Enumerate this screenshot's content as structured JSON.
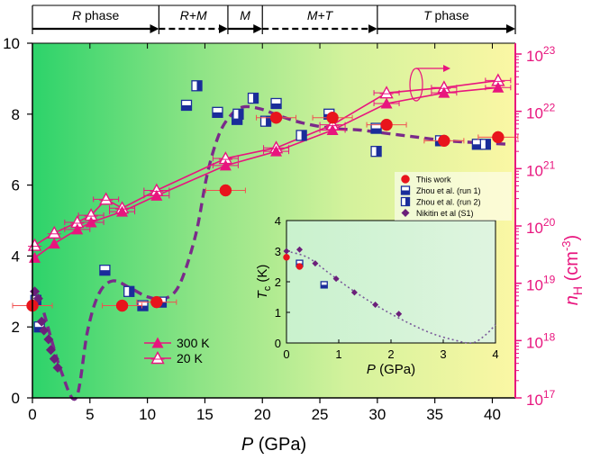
{
  "chart_data": [
    {
      "type": "scatter",
      "title": "",
      "xlabel": "P (GPa)",
      "ylabel_right": "n_H (cm^-3)",
      "xlim": [
        0,
        42
      ],
      "ylim": [
        0,
        10
      ],
      "x_ticks": [
        "0",
        "5",
        "10",
        "15",
        "20",
        "25",
        "30",
        "35",
        "40"
      ],
      "y_ticks": [
        "0",
        "2",
        "4",
        "6",
        "8",
        "10"
      ],
      "right_ticks": [
        {
          "base": "10",
          "exp": "17"
        },
        {
          "base": "10",
          "exp": "18"
        },
        {
          "base": "10",
          "exp": "19"
        },
        {
          "base": "10",
          "exp": "20"
        },
        {
          "base": "10",
          "exp": "21"
        },
        {
          "base": "10",
          "exp": "22"
        },
        {
          "base": "10",
          "exp": "23"
        }
      ],
      "right_ylim_log10": [
        17,
        23
      ],
      "phases": [
        {
          "label": "R phase",
          "from": 0,
          "to": 11,
          "style": "solid"
        },
        {
          "label": "R+M",
          "from": 11,
          "to": 17,
          "style": "dashed"
        },
        {
          "label": "M",
          "from": 17,
          "to": 20,
          "style": "solid"
        },
        {
          "label": "M+T",
          "from": 20,
          "to": 30,
          "style": "dashed"
        },
        {
          "label": "T phase",
          "from": 30,
          "to": 42,
          "style": "solid"
        }
      ],
      "series": [
        {
          "name": "This work",
          "marker": "circle",
          "color": "#e8141c",
          "points": [
            [
              0,
              2.6
            ],
            [
              7.8,
              2.6
            ],
            [
              10.8,
              2.7
            ],
            [
              16.8,
              5.85
            ],
            [
              21.2,
              7.9
            ],
            [
              26.1,
              7.9
            ],
            [
              30.8,
              7.7
            ],
            [
              35.8,
              7.25
            ],
            [
              40.5,
              7.35
            ]
          ]
        },
        {
          "name": "Zhou et al. (run 1)",
          "marker": "half-square-bottom",
          "color": "#1a2d9a",
          "points": [
            [
              0.6,
              2.0
            ],
            [
              6.3,
              3.6
            ],
            [
              9.6,
              2.6
            ],
            [
              11.2,
              2.7
            ],
            [
              13.4,
              8.25
            ],
            [
              16.1,
              8.05
            ],
            [
              17.8,
              7.85
            ],
            [
              21.2,
              8.3
            ],
            [
              25.8,
              8.0
            ],
            [
              29.9,
              7.6
            ],
            [
              35.5,
              7.25
            ],
            [
              38.7,
              7.15
            ]
          ]
        },
        {
          "name": "Zhou et al. (run 2)",
          "marker": "half-square-right",
          "color": "#1a2d9a",
          "points": [
            [
              0.3,
              2.75
            ],
            [
              8.4,
              3.0
            ],
            [
              14.3,
              8.8
            ],
            [
              17.9,
              8.0
            ],
            [
              19.2,
              8.45
            ],
            [
              20.3,
              7.8
            ],
            [
              23.4,
              7.4
            ],
            [
              29.9,
              6.95
            ],
            [
              39.4,
              7.15
            ]
          ]
        },
        {
          "name": "Nikitin et al (S1)",
          "marker": "diamond",
          "color": "#6b1f7a",
          "points": [
            [
              0.2,
              3.0
            ],
            [
              0.5,
              2.8
            ],
            [
              0.8,
              2.15
            ],
            [
              1.0,
              1.9
            ],
            [
              1.4,
              1.65
            ],
            [
              1.6,
              1.35
            ],
            [
              1.9,
              1.1
            ],
            [
              2.2,
              0.85
            ]
          ]
        },
        {
          "name": "300 K",
          "marker": "triangle-filled",
          "color": "#e8157e",
          "points": [
            [
              0.2,
              3.95
            ],
            [
              1.9,
              4.35
            ],
            [
              3.9,
              4.75
            ],
            [
              5.1,
              4.95
            ],
            [
              7.8,
              5.25
            ],
            [
              10.8,
              5.7
            ],
            [
              16.8,
              6.55
            ],
            [
              21.2,
              6.95
            ],
            [
              26.1,
              7.55
            ],
            [
              30.8,
              8.3
            ],
            [
              35.8,
              8.6
            ],
            [
              40.5,
              8.75
            ]
          ]
        },
        {
          "name": "20 K",
          "marker": "triangle-open",
          "color": "#e8157e",
          "points": [
            [
              0.2,
              4.3
            ],
            [
              1.9,
              4.65
            ],
            [
              3.9,
              4.95
            ],
            [
              5.1,
              5.15
            ],
            [
              6.4,
              5.6
            ],
            [
              7.8,
              5.35
            ],
            [
              10.8,
              5.85
            ],
            [
              16.8,
              6.75
            ],
            [
              21.2,
              7.05
            ],
            [
              26.1,
              7.7
            ],
            [
              30.8,
              8.6
            ],
            [
              35.8,
              8.75
            ],
            [
              40.5,
              8.95
            ]
          ]
        },
        {
          "name": "trend",
          "marker": "none",
          "style": "dashed",
          "color": "#7a2a8a",
          "points": [
            [
              1,
              2.4
            ],
            [
              2.5,
              0.75
            ],
            [
              3.8,
              0.0
            ],
            [
              4.8,
              1.9
            ],
            [
              5.8,
              2.95
            ],
            [
              7,
              3.3
            ],
            [
              8.5,
              3.1
            ],
            [
              10,
              2.85
            ],
            [
              11.5,
              2.8
            ],
            [
              12.8,
              3.2
            ],
            [
              14.2,
              4.6
            ],
            [
              15.2,
              6.3
            ],
            [
              16.2,
              7.4
            ],
            [
              17.2,
              7.95
            ],
            [
              18.3,
              8.2
            ],
            [
              19.8,
              8.15
            ],
            [
              21.5,
              7.95
            ],
            [
              23.5,
              7.75
            ],
            [
              26,
              7.6
            ],
            [
              28.5,
              7.55
            ],
            [
              31,
              7.45
            ],
            [
              33.5,
              7.35
            ],
            [
              36,
              7.25
            ],
            [
              38.5,
              7.2
            ],
            [
              41.5,
              7.15
            ]
          ]
        }
      ],
      "legend_lower": [
        "300 K",
        "20 K"
      ],
      "legend_upper": [
        "This work",
        "Zhou et al. (run 1)",
        "Zhou et al. (run 2)",
        "Nikitin et al (S1)"
      ],
      "colors": {
        "plot_bg_left": "#2dd36a",
        "plot_bg_mid": "#c4ef9c",
        "plot_bg_right": "#fbf7a4",
        "right_axis": "#e8157e",
        "frame": "#000000"
      }
    },
    {
      "type": "scatter",
      "title": "",
      "xlabel": "P (GPa)",
      "ylabel": "Tc (K)",
      "xlim": [
        0,
        4
      ],
      "ylim": [
        0,
        4
      ],
      "x_ticks": [
        "0",
        "1",
        "2",
        "3",
        "4"
      ],
      "y_ticks": [
        "0",
        "1",
        "2",
        "3",
        "4"
      ],
      "series": [
        {
          "name": "This work",
          "marker": "circle",
          "color": "#e8141c",
          "points": [
            [
              0.0,
              2.8
            ],
            [
              0.25,
              2.5
            ]
          ]
        },
        {
          "name": "Zhou et al. (run 1)",
          "marker": "half-square-bottom",
          "color": "#1a2d9a",
          "points": [
            [
              0.25,
              2.6
            ],
            [
              0.72,
              1.9
            ]
          ]
        },
        {
          "name": "Nikitin et al (S1)",
          "marker": "diamond",
          "color": "#6b1f7a",
          "points": [
            [
              0.0,
              3.0
            ],
            [
              0.25,
              3.05
            ],
            [
              0.55,
              2.6
            ],
            [
              0.95,
              2.1
            ],
            [
              1.3,
              1.65
            ],
            [
              1.7,
              1.25
            ],
            [
              2.15,
              0.95
            ]
          ]
        },
        {
          "name": "fit",
          "marker": "none",
          "style": "dotted",
          "color": "#7a5a9a",
          "points": [
            [
              0.0,
              3.0
            ],
            [
              0.4,
              2.8
            ],
            [
              0.8,
              2.3
            ],
            [
              1.2,
              1.8
            ],
            [
              1.6,
              1.35
            ],
            [
              2.0,
              0.95
            ],
            [
              2.4,
              0.6
            ],
            [
              2.8,
              0.3
            ],
            [
              3.2,
              0.1
            ],
            [
              3.55,
              0.0
            ],
            [
              3.8,
              0.25
            ],
            [
              4.0,
              0.6
            ]
          ]
        }
      ]
    }
  ]
}
